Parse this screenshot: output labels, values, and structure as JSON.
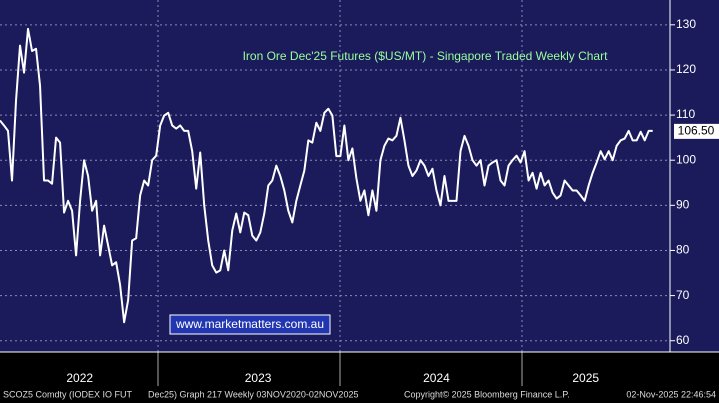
{
  "chart_data": {
    "type": "line",
    "title": "Iron Ore Dec'25 Futures ($US/MT) - Singapore Traded Weekly Chart",
    "watermark": "www.marketmatters.com.au",
    "last_price": {
      "value": 106.5,
      "label": "106.50"
    },
    "footer": [
      "SCOZ5 Comdty (IODEX IO FUT",
      "Dec25) Graph 217 Weekly 03NOV2020-02NOV2025",
      "Copyright© 2025 Bloomberg Finance L.P.",
      "02-Nov-2025 22:46:54"
    ],
    "grid": true,
    "xlim": [
      2022.132,
      2025.813
    ],
    "xticks": [
      {
        "value": 2022.57,
        "label": "2022"
      },
      {
        "value": 2023.55,
        "label": "2023"
      },
      {
        "value": 2024.53,
        "label": "2024"
      },
      {
        "value": 2025.35,
        "label": "2025"
      }
    ],
    "ylim": [
      57.5,
      135.5
    ],
    "yticks": [
      60,
      70,
      80,
      90,
      100,
      110,
      120,
      130
    ],
    "series": [
      {
        "name": "SCOZ5 Comdty",
        "color": "#ffffff",
        "x": [
          2022.132,
          2022.154,
          2022.176,
          2022.198,
          2022.22,
          2022.242,
          2022.264,
          2022.286,
          2022.308,
          2022.33,
          2022.352,
          2022.374,
          2022.396,
          2022.418,
          2022.44,
          2022.462,
          2022.484,
          2022.506,
          2022.528,
          2022.55,
          2022.572,
          2022.594,
          2022.616,
          2022.638,
          2022.66,
          2022.682,
          2022.704,
          2022.726,
          2022.748,
          2022.77,
          2022.792,
          2022.814,
          2022.836,
          2022.858,
          2022.88,
          2022.902,
          2022.924,
          2022.946,
          2022.968,
          2022.99,
          2023.012,
          2023.034,
          2023.056,
          2023.078,
          2023.1,
          2023.122,
          2023.144,
          2023.166,
          2023.188,
          2023.21,
          2023.232,
          2023.254,
          2023.276,
          2023.298,
          2023.32,
          2023.342,
          2023.364,
          2023.386,
          2023.408,
          2023.43,
          2023.452,
          2023.474,
          2023.496,
          2023.518,
          2023.54,
          2023.562,
          2023.584,
          2023.606,
          2023.628,
          2023.65,
          2023.672,
          2023.694,
          2023.716,
          2023.738,
          2023.76,
          2023.782,
          2023.804,
          2023.826,
          2023.848,
          2023.87,
          2023.892,
          2023.914,
          2023.936,
          2023.958,
          2023.98,
          2024.002,
          2024.024,
          2024.046,
          2024.068,
          2024.09,
          2024.112,
          2024.134,
          2024.156,
          2024.178,
          2024.2,
          2024.222,
          2024.244,
          2024.266,
          2024.288,
          2024.31,
          2024.332,
          2024.354,
          2024.376,
          2024.398,
          2024.42,
          2024.442,
          2024.464,
          2024.486,
          2024.508,
          2024.53,
          2024.552,
          2024.574,
          2024.596,
          2024.618,
          2024.64,
          2024.662,
          2024.684,
          2024.706,
          2024.728,
          2024.75,
          2024.772,
          2024.794,
          2024.816,
          2024.838,
          2024.86,
          2024.882,
          2024.904,
          2024.926,
          2024.948,
          2024.97,
          2024.992,
          2025.014,
          2025.036,
          2025.058,
          2025.08,
          2025.102,
          2025.124,
          2025.146,
          2025.168,
          2025.19,
          2025.212,
          2025.234,
          2025.256,
          2025.278,
          2025.3,
          2025.322,
          2025.344,
          2025.366,
          2025.388,
          2025.41,
          2025.432,
          2025.454,
          2025.476,
          2025.498,
          2025.52,
          2025.542,
          2025.564,
          2025.586,
          2025.608,
          2025.63,
          2025.652,
          2025.674,
          2025.696,
          2025.718
        ],
        "values": [
          108.8,
          107.7,
          106.5,
          95.5,
          113.2,
          125.4,
          119.4,
          129.1,
          124.2,
          124.7,
          116.5,
          95.5,
          95.5,
          94.8,
          105,
          103.9,
          88.4,
          91,
          88.8,
          78.9,
          91,
          100,
          96.5,
          88.8,
          91,
          78.9,
          85.5,
          81.1,
          76.7,
          77.4,
          72.3,
          64.1,
          69,
          82.2,
          82.7,
          92.2,
          95.5,
          94.4,
          100,
          101,
          107.7,
          109.9,
          110.5,
          107.7,
          107,
          107.7,
          106.5,
          106.5,
          102,
          93.7,
          101.7,
          90,
          82.2,
          76.7,
          75.1,
          75.6,
          80,
          75.6,
          84.4,
          88.2,
          84,
          88.4,
          87.8,
          83.3,
          82.2,
          84,
          88.2,
          94.4,
          95.5,
          98.8,
          96.5,
          93.3,
          88.8,
          86.2,
          91,
          94.4,
          97.7,
          104.4,
          103.9,
          108.3,
          106.5,
          110.5,
          111.4,
          109.9,
          100.9,
          100.9,
          107.7,
          100,
          102.6,
          96,
          91,
          93.3,
          87.8,
          93.3,
          88.8,
          100,
          103.2,
          104.8,
          104.4,
          105.4,
          109.4,
          104.4,
          98.8,
          96.5,
          97.7,
          100,
          98.8,
          96.5,
          98.1,
          93.3,
          90,
          96.5,
          91,
          91,
          91,
          102,
          105.4,
          103.2,
          100,
          98.8,
          100,
          94.4,
          98.8,
          99.5,
          100,
          95.5,
          94.4,
          98.8,
          100,
          101,
          99.5,
          102,
          95.5,
          97.2,
          93.7,
          97.2,
          94.4,
          95.5,
          92.8,
          91.5,
          92.2,
          95.5,
          94.4,
          93.3,
          93.3,
          92.2,
          91,
          94.4,
          97.2,
          99.5,
          102,
          100.2,
          102,
          100,
          103.2,
          104.4,
          104.8,
          106.5,
          104.4,
          104.4,
          106.3,
          104.4,
          106.5,
          106.5
        ]
      }
    ]
  }
}
